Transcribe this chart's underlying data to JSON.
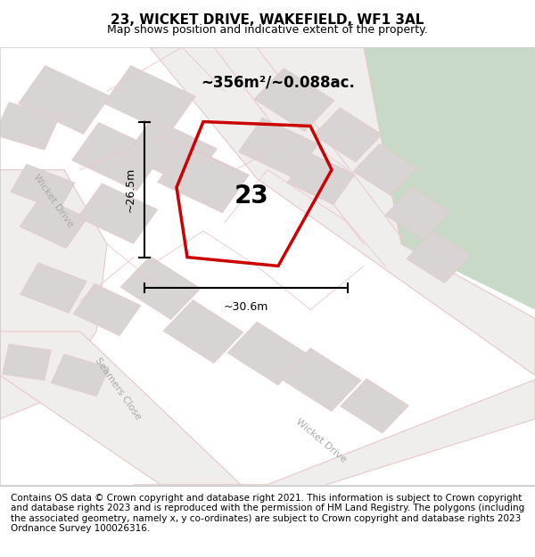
{
  "title": "23, WICKET DRIVE, WAKEFIELD, WF1 3AL",
  "subtitle": "Map shows position and indicative extent of the property.",
  "area_m2": "~356m²/~0.088ac.",
  "label_23": "23",
  "dim_vertical": "~26.5m",
  "dim_horizontal": "~30.6m",
  "footer": "Contains OS data © Crown copyright and database right 2021. This information is subject to Crown copyright and database rights 2023 and is reproduced with the permission of HM Land Registry. The polygons (including the associated geometry, namely x, y co-ordinates) are subject to Crown copyright and database rights 2023 Ordnance Survey 100026316.",
  "bg_map_color": "#f2f0f0",
  "bg_green_color": "#c8d9c8",
  "road_outline_color": "#e8c8c8",
  "property_outline_color": "#cc0000",
  "building_color": "#d8d4d4",
  "road_fill_color": "#eeeeee",
  "title_fontsize": 11,
  "subtitle_fontsize": 9,
  "footer_fontsize": 7.5,
  "map_label_fontsize": 9
}
